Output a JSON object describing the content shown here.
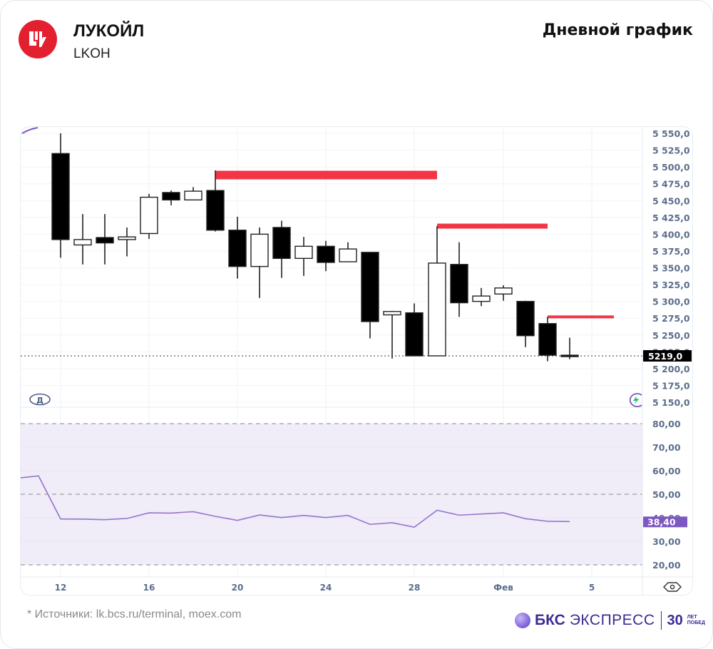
{
  "header": {
    "company": "ЛУКОЙЛ",
    "ticker": "LKOH",
    "chart_type": "Дневной график",
    "logo_icon": "lukoil-logo-icon"
  },
  "footer": {
    "source": "* Источники: lk.bcs.ru/terminal, moex.com",
    "brand_bks": "БКС",
    "brand_express": "ЭКСПРЕСС",
    "brand_30": "30",
    "brand_let": "ЛЕТ",
    "brand_pobed": "ПОБЕД"
  },
  "chart_data": [
    {
      "type": "candlestick",
      "title": "ЛУКОЙЛ (LKOH) — Дневной график",
      "x_tick_labels": [
        "12",
        "16",
        "20",
        "24",
        "28",
        "Фев",
        "5"
      ],
      "y_tick_labels": [
        "5 550,0",
        "5 525,0",
        "5 500,0",
        "5 475,0",
        "5 450,0",
        "5 425,0",
        "5 400,0",
        "5 375,0",
        "5 350,0",
        "5 325,0",
        "5 300,0",
        "5 275,0",
        "5 250,0",
        "5 225,0",
        "5 200,0",
        "5 175,0",
        "5 150,0"
      ],
      "ylim": [
        5150,
        5550
      ],
      "last_price_label": "5219,0",
      "last_price": 5219,
      "grid": true,
      "candles": [
        {
          "date": "12 Jan",
          "open": 5520,
          "high": 5550,
          "low": 5365,
          "close": 5392
        },
        {
          "date": "13 Jan",
          "open": 5384,
          "high": 5430,
          "low": 5355,
          "close": 5392
        },
        {
          "date": "14 Jan",
          "open": 5395,
          "high": 5430,
          "low": 5355,
          "close": 5387
        },
        {
          "date": "15 Jan",
          "open": 5392,
          "high": 5410,
          "low": 5367,
          "close": 5396
        },
        {
          "date": "16 Jan",
          "open": 5401,
          "high": 5460,
          "low": 5393,
          "close": 5455
        },
        {
          "date": "17 Jan",
          "open": 5462,
          "high": 5465,
          "low": 5443,
          "close": 5451
        },
        {
          "date": "18 Jan",
          "open": 5451,
          "high": 5470,
          "low": 5451,
          "close": 5464
        },
        {
          "date": "19 Jan",
          "open": 5465,
          "high": 5495,
          "low": 5404,
          "close": 5406
        },
        {
          "date": "20 Jan",
          "open": 5406,
          "high": 5426,
          "low": 5334,
          "close": 5352
        },
        {
          "date": "21 Jan",
          "open": 5352,
          "high": 5410,
          "low": 5305,
          "close": 5400
        },
        {
          "date": "22 Jan",
          "open": 5410,
          "high": 5420,
          "low": 5335,
          "close": 5364
        },
        {
          "date": "23 Jan",
          "open": 5364,
          "high": 5396,
          "low": 5338,
          "close": 5382
        },
        {
          "date": "24 Jan",
          "open": 5382,
          "high": 5390,
          "low": 5345,
          "close": 5358
        },
        {
          "date": "25 Jan",
          "open": 5359,
          "high": 5388,
          "low": 5359,
          "close": 5378
        },
        {
          "date": "26 Jan",
          "open": 5373,
          "high": 5373,
          "low": 5245,
          "close": 5270
        },
        {
          "date": "27 Jan",
          "open": 5280,
          "high": 5286,
          "low": 5215,
          "close": 5285
        },
        {
          "date": "28 Jan",
          "open": 5283,
          "high": 5297,
          "low": 5219,
          "close": 5219
        },
        {
          "date": "29 Jan",
          "open": 5219,
          "high": 5412,
          "low": 5219,
          "close": 5357
        },
        {
          "date": "30 Jan",
          "open": 5355,
          "high": 5388,
          "low": 5277,
          "close": 5298
        },
        {
          "date": "2 Feb",
          "open": 5300,
          "high": 5320,
          "low": 5293,
          "close": 5308
        },
        {
          "date": "3 Feb",
          "open": 5311,
          "high": 5324,
          "low": 5301,
          "close": 5320
        },
        {
          "date": "4 Feb",
          "open": 5300,
          "high": 5301,
          "low": 5232,
          "close": 5249
        },
        {
          "date": "5 Feb",
          "open": 5267,
          "high": 5277,
          "low": 5211,
          "close": 5220
        },
        {
          "date": "6 Feb",
          "open": 5220,
          "high": 5246,
          "low": 5214,
          "close": 5219
        }
      ],
      "resistance_levels": [
        {
          "price": 5488,
          "from": "19 Jan",
          "to": "29 Jan",
          "color": "#f23645",
          "thickness": "thick"
        },
        {
          "price": 5412,
          "from": "29 Jan",
          "to": "5 Feb",
          "color": "#f23645",
          "thickness": "medium"
        },
        {
          "price": 5277,
          "from": "5 Feb",
          "to": "7 Feb",
          "color": "#f23645",
          "thickness": "thin"
        }
      ]
    },
    {
      "type": "line",
      "title": "RSI",
      "y_tick_labels": [
        "80,00",
        "70,00",
        "60,00",
        "50,00",
        "40,00",
        "30,00",
        "20,00"
      ],
      "ylim": [
        17,
        83
      ],
      "bands": [
        20,
        50,
        80
      ],
      "band_fill_range": [
        20,
        80
      ],
      "last_value_label": "38,40",
      "series": [
        {
          "name": "RSI",
          "color": "#9575cd",
          "values": [
            57,
            57.8,
            39.5,
            39.4,
            39.2,
            39.7,
            42.1,
            42,
            42.6,
            40.6,
            38.9,
            41.2,
            40.1,
            41,
            40.1,
            41,
            37.2,
            37.9,
            36,
            43.2,
            41.1,
            41.6,
            42.1,
            39.6,
            38.5,
            38.4
          ]
        }
      ],
      "grid": true,
      "accent_color": "#7e57c2",
      "fill_color": "#f0ecf8"
    }
  ],
  "chart_controls": {
    "interval_badge": "Д",
    "lightning_icon": "lightning-icon",
    "eye_icon": "eye-icon"
  }
}
